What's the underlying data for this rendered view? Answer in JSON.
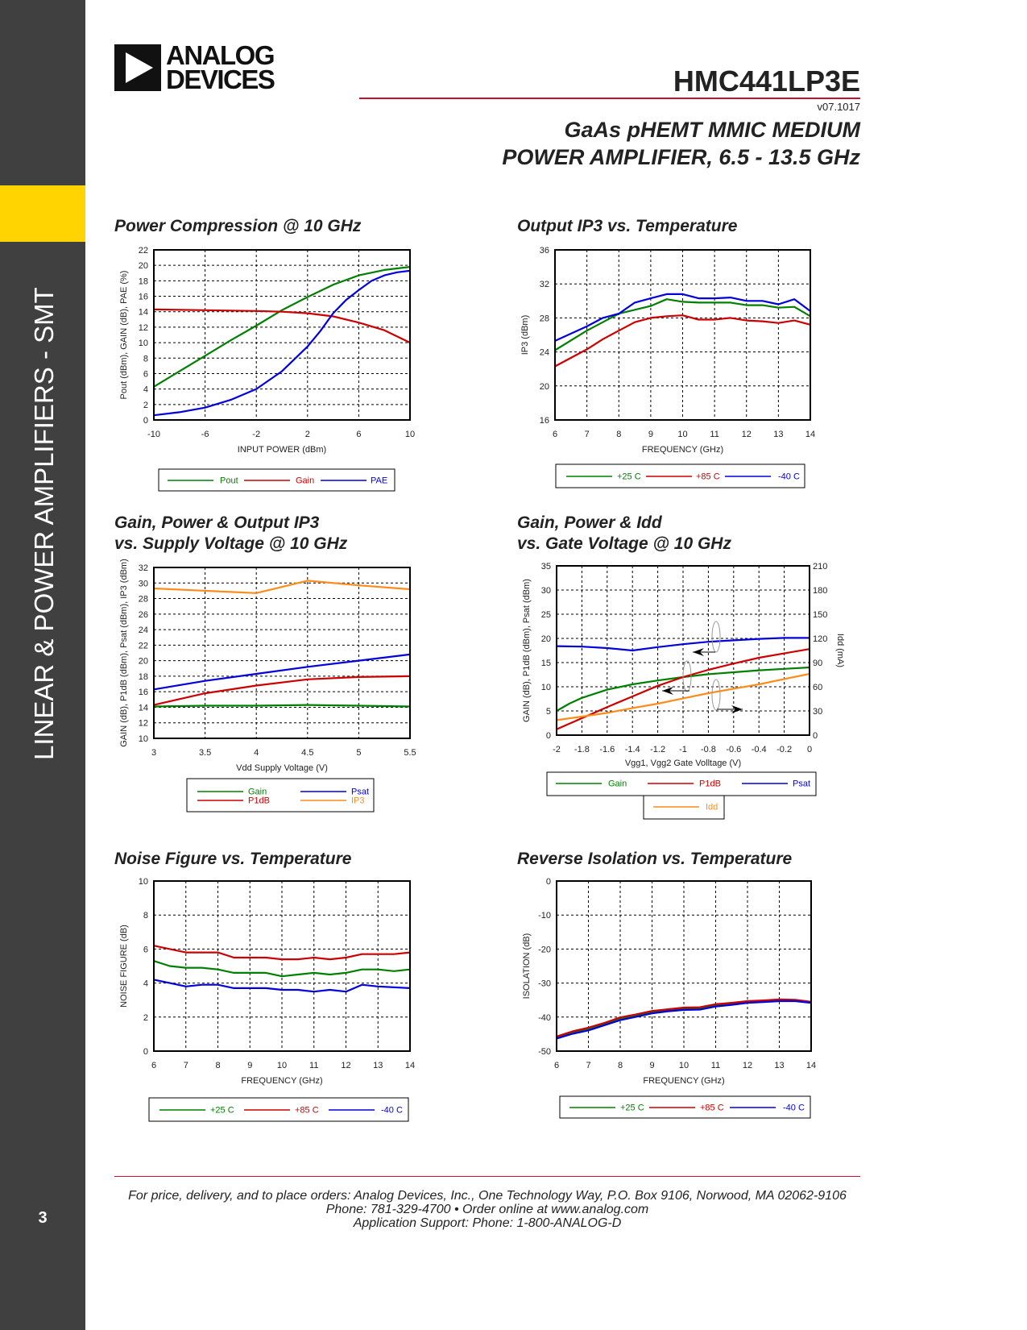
{
  "sidebar": {
    "section": "LINEAR & POWER AMPLIFIERS - SMT",
    "page_number": "3"
  },
  "logo": {
    "line1": "ANALOG",
    "line2": "DEVICES"
  },
  "header": {
    "part_number": "HMC441LP3E",
    "version": "v07.1017",
    "subtitle_line1": "GaAs pHEMT MMIC MEDIUM",
    "subtitle_line2": "POWER AMPLIFIER, 6.5 - 13.5 GHz"
  },
  "chart_titles": [
    [
      "Power Compression @ 10 GHz"
    ],
    [
      "Output IP3 vs. Temperature"
    ],
    [
      "Gain, Power & Output IP3",
      "vs. Supply Voltage @ 10 GHz"
    ],
    [
      "Gain, Power & Idd",
      "vs. Gate Voltage @ 10 GHz"
    ],
    [
      "Noise Figure vs. Temperature"
    ],
    [
      "Reverse Isolation vs. Temperature"
    ]
  ],
  "colors": {
    "green": "#008000",
    "red": "#cc0000",
    "blue": "#0000dd",
    "orange": "#ff8c1a",
    "accent_red": "#c8102e",
    "sidebar": "#404040",
    "yellow": "#ffd400"
  },
  "chart_data": [
    {
      "type": "line",
      "title": "Power Compression @ 10 GHz",
      "xlabel": "INPUT POWER (dBm)",
      "ylabel": "Pout (dBm), GAIN (dB), PAE (%)",
      "xlim": [
        -10,
        10
      ],
      "ylim": [
        0,
        22
      ],
      "xtick_labels": [
        "-10",
        "-6",
        "-2",
        "2",
        "6",
        "10"
      ],
      "ytick_labels": [
        "0",
        "2",
        "4",
        "6",
        "8",
        "10",
        "12",
        "14",
        "16",
        "18",
        "20",
        "22"
      ],
      "grid": true,
      "legend": "bottom",
      "series": [
        {
          "name": "Pout",
          "color": "#008000",
          "x": [
            -10,
            -8,
            -6,
            -4,
            -2,
            0,
            2,
            4,
            6,
            8,
            10
          ],
          "y": [
            4.3,
            6.3,
            8.3,
            10.3,
            12.2,
            14.2,
            15.9,
            17.5,
            18.7,
            19.4,
            19.8
          ]
        },
        {
          "name": "Gain",
          "color": "#cc0000",
          "x": [
            -10,
            -6,
            -2,
            0,
            2,
            4,
            6,
            8,
            10
          ],
          "y": [
            14.3,
            14.2,
            14.1,
            14.0,
            13.8,
            13.4,
            12.6,
            11.6,
            10.0
          ]
        },
        {
          "name": "PAE",
          "color": "#0000dd",
          "x": [
            -10,
            -8,
            -6,
            -4,
            -2,
            0,
            2,
            3,
            4,
            5,
            6,
            7,
            8,
            9,
            10
          ],
          "y": [
            0.6,
            1.0,
            1.6,
            2.6,
            4.0,
            6.3,
            9.5,
            11.5,
            13.8,
            15.5,
            16.8,
            18.0,
            18.7,
            19.1,
            19.3
          ]
        }
      ]
    },
    {
      "type": "line",
      "title": "Output IP3 vs. Temperature",
      "xlabel": "FREQUENCY (GHz)",
      "ylabel": "IP3 (dBm)",
      "xlim": [
        6,
        14
      ],
      "ylim": [
        16,
        36
      ],
      "xtick_labels": [
        "6",
        "7",
        "8",
        "9",
        "10",
        "11",
        "12",
        "13",
        "14"
      ],
      "ytick_labels": [
        "16",
        "20",
        "24",
        "28",
        "32",
        "36"
      ],
      "grid": true,
      "legend": "bottom",
      "series": [
        {
          "name": "+25 C",
          "color": "#008000",
          "x": [
            6,
            7,
            7.5,
            8,
            9,
            9.5,
            10,
            10.5,
            11,
            11.5,
            12,
            12.5,
            13,
            13.5,
            14
          ],
          "y": [
            24.2,
            26.5,
            27.5,
            28.5,
            29.4,
            30.2,
            29.9,
            29.8,
            29.8,
            29.8,
            29.5,
            29.5,
            29.2,
            29.3,
            28.2
          ]
        },
        {
          "name": "+85 C",
          "color": "#cc0000",
          "x": [
            6,
            7,
            7.5,
            8,
            8.5,
            9,
            9.5,
            10,
            10.5,
            11,
            11.5,
            12,
            12.5,
            13,
            13.5,
            14
          ],
          "y": [
            22.3,
            24.3,
            25.5,
            26.5,
            27.5,
            28.0,
            28.2,
            28.3,
            27.8,
            27.8,
            28.0,
            27.7,
            27.6,
            27.4,
            27.7,
            27.2
          ]
        },
        {
          "name": "-40 C",
          "color": "#0000dd",
          "x": [
            6,
            7,
            7.5,
            8,
            8.5,
            9,
            9.5,
            10,
            10.5,
            11,
            11.5,
            12,
            12.5,
            13,
            13.5,
            14
          ],
          "y": [
            25.3,
            27.0,
            28.0,
            28.5,
            29.8,
            30.3,
            30.8,
            30.8,
            30.3,
            30.3,
            30.4,
            30.0,
            30.0,
            29.6,
            30.2,
            28.8
          ]
        }
      ]
    },
    {
      "type": "line",
      "title": "Gain, Power & Output IP3 vs. Supply Voltage @ 10 GHz",
      "xlabel": "Vdd Supply Voltage (V)",
      "ylabel": "GAIN (dB), P1dB (dBm), Psat (dBm), IP3 (dBm)",
      "xlim": [
        3,
        5.5
      ],
      "ylim": [
        10,
        32
      ],
      "xtick_labels": [
        "3",
        "3.5",
        "4",
        "4.5",
        "5",
        "5.5"
      ],
      "ytick_labels": [
        "10",
        "12",
        "14",
        "16",
        "18",
        "20",
        "22",
        "24",
        "26",
        "28",
        "30",
        "32"
      ],
      "grid": true,
      "legend": "bottom",
      "series": [
        {
          "name": "Gain",
          "color": "#008000",
          "x": [
            3,
            3.5,
            4,
            4.5,
            5,
            5.5
          ],
          "y": [
            14.1,
            14.2,
            14.2,
            14.3,
            14.2,
            14.1
          ]
        },
        {
          "name": "P1dB",
          "color": "#cc0000",
          "x": [
            3,
            3.5,
            4,
            4.5,
            5,
            5.5
          ],
          "y": [
            14.3,
            15.8,
            16.8,
            17.6,
            17.9,
            18.0
          ]
        },
        {
          "name": "Psat",
          "color": "#0000dd",
          "x": [
            3,
            3.5,
            4,
            4.5,
            5,
            5.5
          ],
          "y": [
            16.3,
            17.4,
            18.3,
            19.2,
            20.0,
            20.8
          ]
        },
        {
          "name": "IP3",
          "color": "#ff8c1a",
          "x": [
            3,
            4,
            4.5,
            5,
            5.5
          ],
          "y": [
            29.3,
            28.7,
            30.3,
            29.7,
            29.2
          ]
        }
      ]
    },
    {
      "type": "line",
      "title": "Gain, Power & Idd vs. Gate Voltage @ 10 GHz",
      "xlabel": "Vgg1, Vgg2  Gate Volltage (V)",
      "ylabel": "GAIN (dB), P1dB (dBm), Psat (dBm)",
      "y2label": "Idd (mA)",
      "xlim": [
        -2,
        0
      ],
      "ylim": [
        0,
        35
      ],
      "y2lim": [
        0,
        210
      ],
      "xtick_labels": [
        "-2",
        "-1.8",
        "-1.6",
        "-1.4",
        "-1.2",
        "-1",
        "-0.8",
        "-0.6",
        "-0.4",
        "-0.2",
        "0"
      ],
      "ytick_labels": [
        "0",
        "5",
        "10",
        "15",
        "20",
        "25",
        "30",
        "35"
      ],
      "y2tick_labels": [
        "0",
        "30",
        "60",
        "90",
        "120",
        "150",
        "180",
        "210"
      ],
      "grid": true,
      "legend": "bottom",
      "series": [
        {
          "name": "Gain",
          "color": "#008000",
          "x": [
            -2,
            -1.9,
            -1.8,
            -1.6,
            -1.4,
            -1.2,
            -1,
            -0.8,
            -0.6,
            -0.4,
            -0.2,
            0
          ],
          "y": [
            5.0,
            6.5,
            7.7,
            9.4,
            10.5,
            11.3,
            12.0,
            12.6,
            13.0,
            13.4,
            13.7,
            14.0
          ]
        },
        {
          "name": "P1dB",
          "color": "#cc0000",
          "x": [
            -2,
            -1.8,
            -1.6,
            -1.4,
            -1.2,
            -1,
            -0.8,
            -0.6,
            -0.4,
            -0.2,
            0
          ],
          "y": [
            1.2,
            3.5,
            5.8,
            8.0,
            10.2,
            12.0,
            13.5,
            14.8,
            16.0,
            16.9,
            17.8
          ]
        },
        {
          "name": "Psat",
          "color": "#0000dd",
          "x": [
            -2,
            -1.8,
            -1.6,
            -1.4,
            -1.2,
            -1,
            -0.8,
            -0.6,
            -0.4,
            -0.2,
            0
          ],
          "y": [
            18.4,
            18.3,
            18.0,
            17.5,
            18.2,
            18.8,
            19.3,
            19.6,
            19.9,
            20.1,
            20.1
          ]
        },
        {
          "name": "Idd",
          "color": "#ff8c1a",
          "axis": "right",
          "x": [
            -2,
            -1.8,
            -1.6,
            -1.4,
            -1.2,
            -1,
            -0.8,
            -0.6,
            -0.4,
            -0.2,
            0
          ],
          "y": [
            18.6,
            23,
            27.6,
            33.6,
            39,
            45.6,
            52,
            57.6,
            63,
            69.6,
            76
          ]
        }
      ]
    },
    {
      "type": "line",
      "title": "Noise Figure vs. Temperature",
      "xlabel": "FREQUENCY (GHz)",
      "ylabel": "NOISE FIGURE (dB)",
      "xlim": [
        6,
        14
      ],
      "ylim": [
        0,
        10
      ],
      "xtick_labels": [
        "6",
        "7",
        "8",
        "9",
        "10",
        "11",
        "12",
        "13",
        "14"
      ],
      "ytick_labels": [
        "0",
        "2",
        "4",
        "6",
        "8",
        "10"
      ],
      "grid": true,
      "legend": "bottom",
      "series": [
        {
          "name": "+25 C",
          "color": "#008000",
          "x": [
            6,
            6.5,
            7,
            7.5,
            8,
            8.5,
            9,
            9.5,
            10,
            10.5,
            11,
            11.5,
            12,
            12.5,
            13,
            13.5,
            14
          ],
          "y": [
            5.3,
            5.0,
            4.9,
            4.9,
            4.8,
            4.6,
            4.6,
            4.6,
            4.4,
            4.5,
            4.6,
            4.5,
            4.6,
            4.8,
            4.8,
            4.7,
            4.8
          ]
        },
        {
          "name": "+85 C",
          "color": "#cc0000",
          "x": [
            6,
            6.5,
            7,
            8,
            8.5,
            9.5,
            10,
            10.5,
            11,
            11.5,
            12,
            12.5,
            13,
            13.5,
            14
          ],
          "y": [
            6.2,
            6.0,
            5.8,
            5.8,
            5.5,
            5.5,
            5.4,
            5.4,
            5.5,
            5.4,
            5.5,
            5.7,
            5.7,
            5.7,
            5.8
          ]
        },
        {
          "name": "-40 C",
          "color": "#0000dd",
          "x": [
            6,
            6.5,
            7,
            7.5,
            8,
            8.5,
            9,
            9.5,
            10,
            10.5,
            11,
            11.5,
            12,
            12.5,
            13,
            14
          ],
          "y": [
            4.2,
            4.0,
            3.8,
            3.9,
            3.9,
            3.7,
            3.7,
            3.7,
            3.6,
            3.6,
            3.5,
            3.6,
            3.5,
            3.9,
            3.8,
            3.7
          ]
        }
      ]
    },
    {
      "type": "line",
      "title": "Reverse Isolation vs. Temperature",
      "xlabel": "FREQUENCY (GHz)",
      "ylabel": "ISOLATION (dB)",
      "xlim": [
        6,
        14
      ],
      "ylim": [
        -50,
        0
      ],
      "xtick_labels": [
        "6",
        "7",
        "8",
        "9",
        "10",
        "11",
        "12",
        "13",
        "14"
      ],
      "ytick_labels": [
        "-50",
        "-40",
        "-30",
        "-20",
        "-10",
        "0"
      ],
      "grid": true,
      "legend": "bottom",
      "series": [
        {
          "name": "+25 C",
          "color": "#008000",
          "x": [
            6,
            6.5,
            7,
            7.5,
            8,
            8.5,
            9,
            9.5,
            10,
            10.5,
            11,
            11.5,
            12,
            12.5,
            13,
            13.5,
            14
          ],
          "y": [
            -46,
            -44.6,
            -43.6,
            -42.1,
            -40.6,
            -39.6,
            -38.6,
            -38.1,
            -37.6,
            -37.5,
            -36.6,
            -36.1,
            -35.6,
            -35.4,
            -35.1,
            -35.1,
            -35.6
          ]
        },
        {
          "name": "+85 C",
          "color": "#cc0000",
          "x": [
            6,
            6.5,
            7,
            7.5,
            8,
            8.5,
            9,
            9.5,
            10,
            10.5,
            11,
            11.5,
            12,
            12.5,
            13,
            13.5,
            14
          ],
          "y": [
            -45.7,
            -44.2,
            -43.1,
            -41.7,
            -40.1,
            -39.2,
            -38.2,
            -37.7,
            -37.2,
            -37.1,
            -36.2,
            -35.8,
            -35.3,
            -35.1,
            -34.8,
            -34.9,
            -35.5
          ]
        },
        {
          "name": "-40 C",
          "color": "#0000dd",
          "x": [
            6,
            6.5,
            7,
            7.5,
            8,
            8.5,
            9,
            9.5,
            10,
            10.5,
            11,
            11.5,
            12,
            12.5,
            13,
            13.5,
            14
          ],
          "y": [
            -46.3,
            -44.9,
            -43.9,
            -42.4,
            -40.9,
            -39.9,
            -38.9,
            -38.3,
            -37.9,
            -37.8,
            -36.9,
            -36.4,
            -35.8,
            -35.6,
            -35.3,
            -35.3,
            -35.8
          ]
        }
      ]
    }
  ],
  "footer": {
    "line1": "For price, delivery, and to place orders: Analog Devices, Inc., One Technology Way, P.O. Box 9106, Norwood, MA 02062-9106",
    "line2": "Phone: 781-329-4700 • Order online at www.analog.com",
    "line3": "Application Support: Phone: 1-800-ANALOG-D"
  }
}
